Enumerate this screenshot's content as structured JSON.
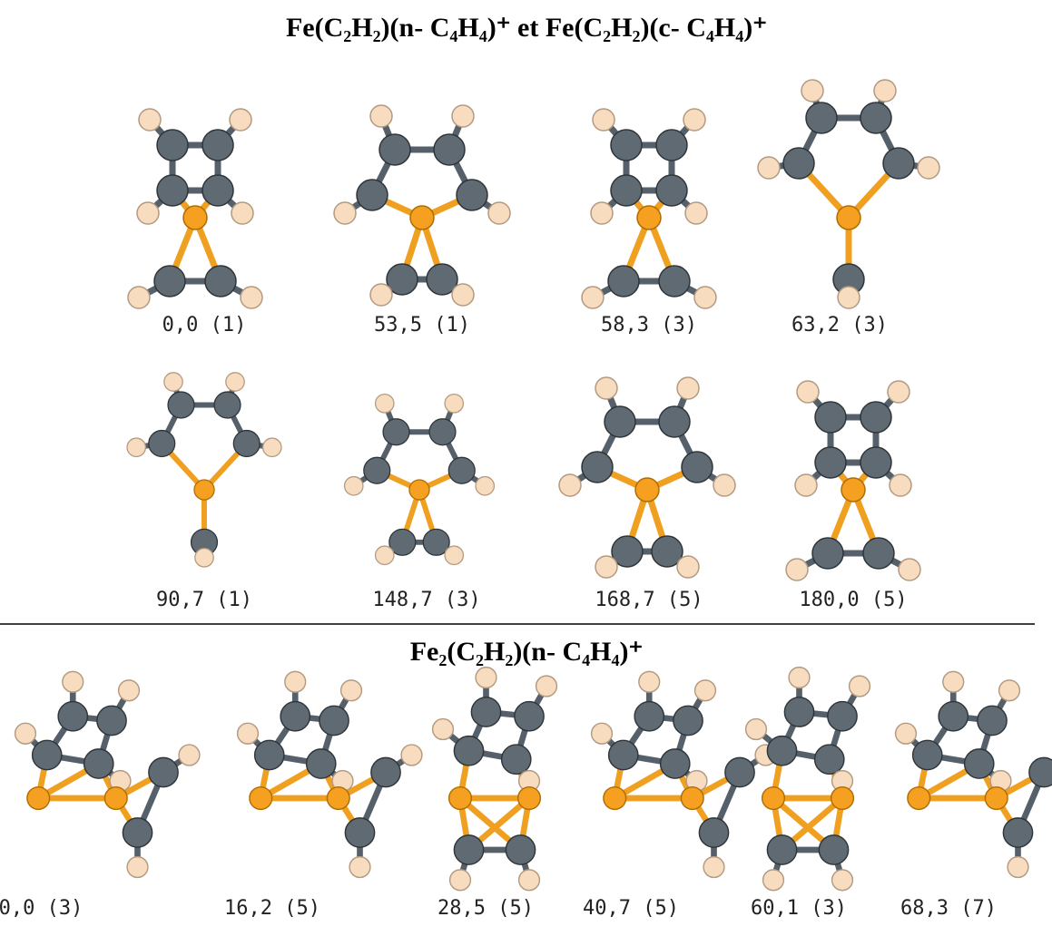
{
  "sections": [
    {
      "title": "Fe(C₂H₂)(n- C₄H₄)⁺ et Fe(C₂H₂)(c- C₄H₄)⁺",
      "rows": [
        [
          "0,0 (1)",
          "53,5 (1)",
          "58,3 (3)",
          "63,2 (3)"
        ],
        [
          "90,7 (1)",
          "148,7 (3)",
          "168,7 (5)",
          "180,0 (5)"
        ]
      ]
    },
    {
      "title": "Fe₂(C₂H₂)(n- C₄H₄)⁺",
      "rows": [
        [
          "0,0 (3)",
          "16,2 (5)",
          "28,5 (5)",
          "40,7 (5)",
          "60,1 (3)",
          "68,3 (7)"
        ]
      ]
    }
  ]
}
